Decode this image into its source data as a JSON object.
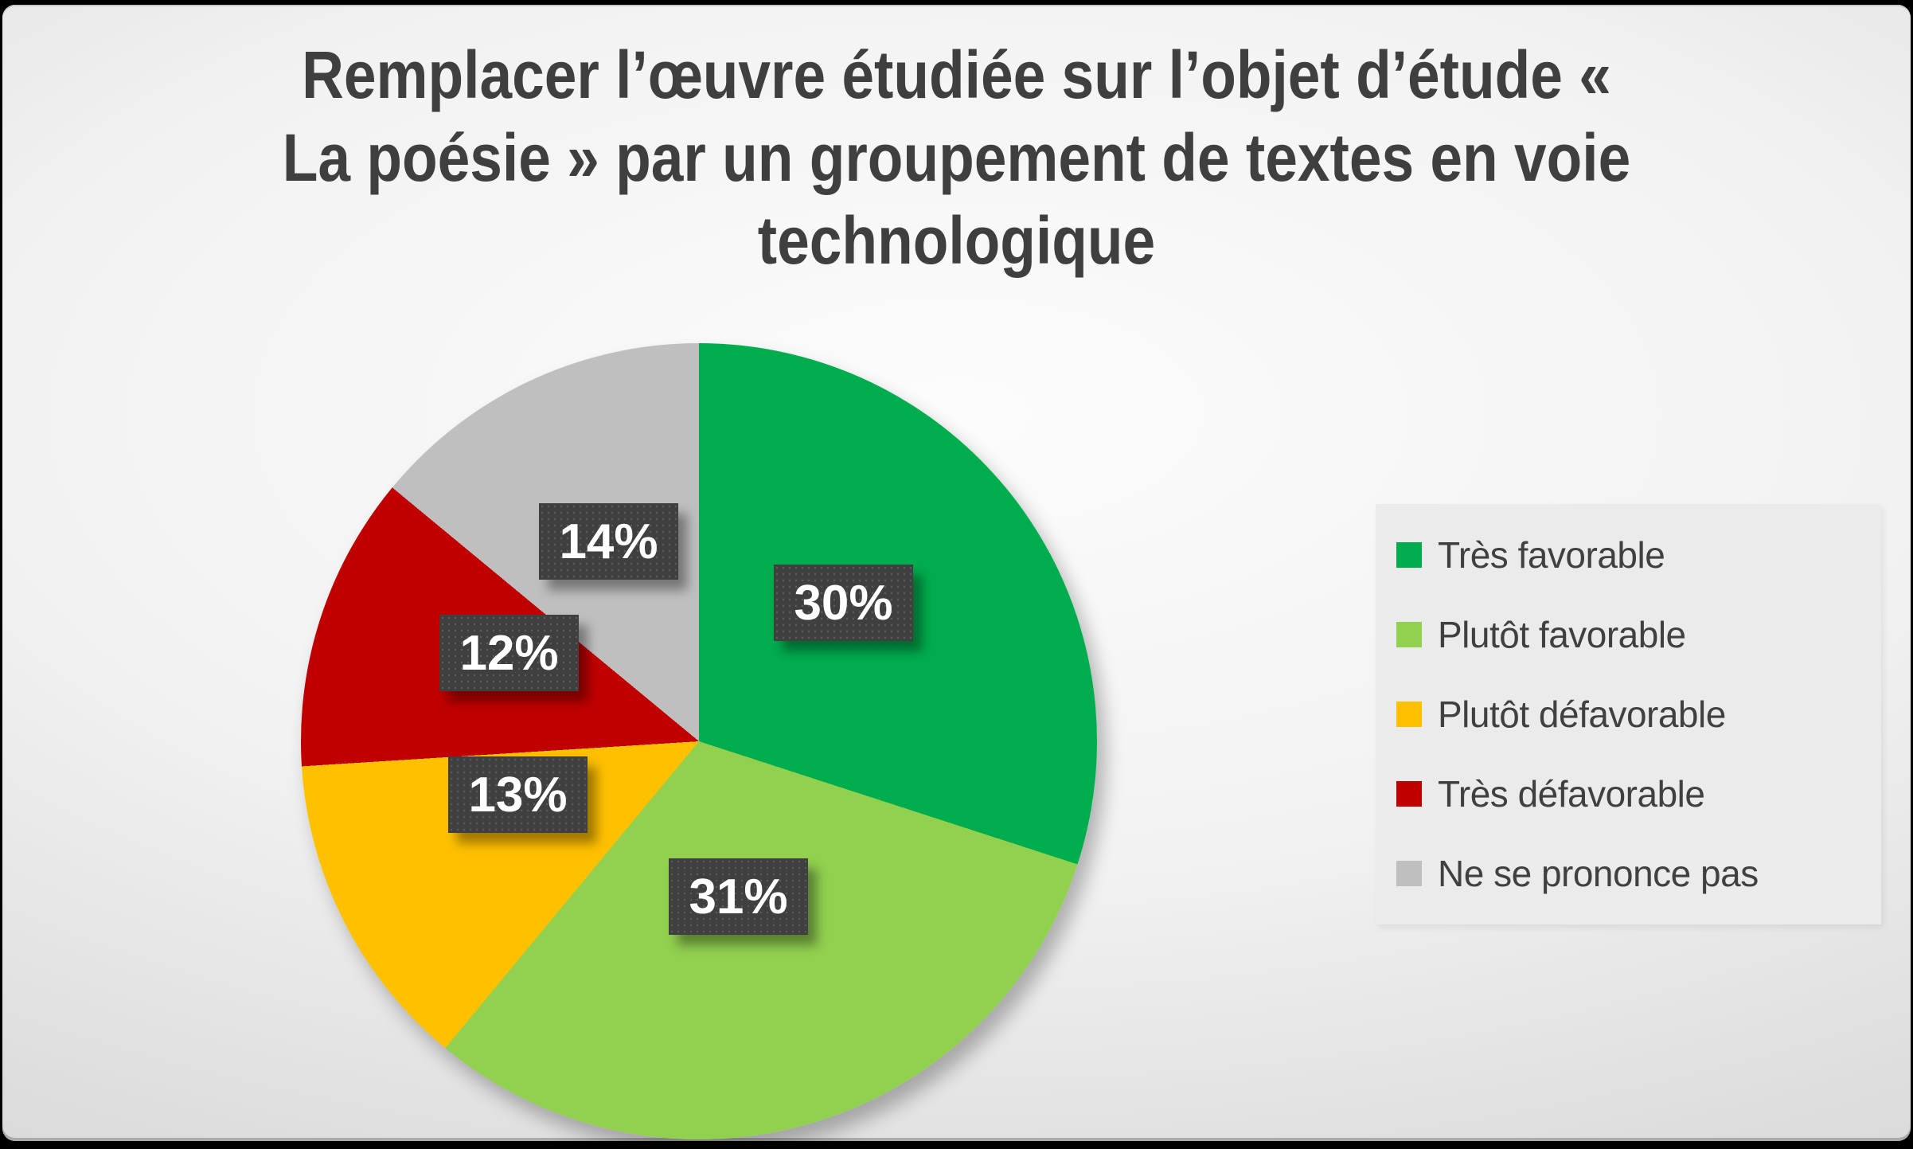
{
  "slide": {
    "title_lines": [
      "Remplacer l’œuvre étudiée sur l’objet d’étude «",
      "La poésie » par un groupement de textes en voie",
      "technologique"
    ],
    "title_color": "#3F3F3F",
    "background_edge_color": "#CFCFCF",
    "background_center_color": "#FCFCFC"
  },
  "chart_data": {
    "type": "pie",
    "title": "Remplacer l’œuvre étudiée sur l’objet d’étude « La poésie » par un groupement de textes en voie technologique",
    "start_angle_deg": 0,
    "direction": "clockwise",
    "legend_position": "right",
    "total_percent": 100,
    "slices": [
      {
        "label": "Très favorable",
        "value": 30,
        "pct": "30%",
        "color": "#00AD4E"
      },
      {
        "label": "Plutôt favorable",
        "value": 31,
        "pct": "31%",
        "color": "#92D050"
      },
      {
        "label": "Plutôt défavorable",
        "value": 13,
        "pct": "13%",
        "color": "#FFC000"
      },
      {
        "label": "Très défavorable",
        "value": 12,
        "pct": "12%",
        "color": "#C00000"
      },
      {
        "label": "Ne se prononce pas",
        "value": 14,
        "pct": "14%",
        "color": "#BFBFBF"
      }
    ],
    "label_box_color": "#3F3F3F",
    "label_text_color": "#FFFFFF",
    "legend_text_color": "#404040"
  }
}
